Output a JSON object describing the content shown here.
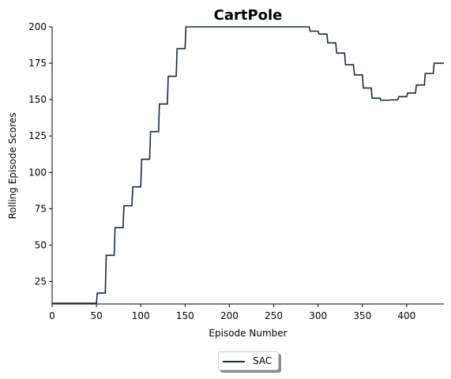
{
  "chart_data": {
    "type": "line",
    "title": "CartPole",
    "xlabel": "Episode Number",
    "ylabel": "Rolling Episode Scores",
    "xlim": [
      0,
      442
    ],
    "ylim": [
      9.5,
      200
    ],
    "x_ticks": [
      "0",
      "50",
      "100",
      "150",
      "200",
      "250",
      "300",
      "350",
      "400"
    ],
    "y_ticks": [
      "25",
      "50",
      "75",
      "100",
      "125",
      "150",
      "175",
      "200"
    ],
    "grid": false,
    "legend_position": "below-center",
    "series": [
      {
        "name": "SAC",
        "color": "#1b2a3c",
        "x": [
          0,
          50,
          51,
          60,
          61,
          70,
          71,
          80,
          81,
          90,
          91,
          100,
          101,
          110,
          111,
          120,
          121,
          130,
          131,
          140,
          141,
          150,
          151,
          290,
          291,
          300,
          301,
          310,
          311,
          320,
          321,
          330,
          331,
          340,
          341,
          350,
          351,
          360,
          361,
          370,
          371,
          380,
          381,
          390,
          391,
          400,
          401,
          410,
          411,
          420,
          421,
          430,
          431,
          442
        ],
        "y": [
          10,
          10,
          17,
          17,
          43,
          43,
          62,
          62,
          77,
          77,
          90,
          90,
          109,
          109,
          128,
          128,
          147,
          147,
          166,
          166,
          185,
          185,
          200,
          200,
          197,
          197,
          195,
          195,
          189,
          189,
          182,
          182,
          174,
          174,
          167,
          167,
          158,
          158,
          151,
          151,
          149.5,
          149.5,
          149.8,
          149.8,
          152,
          152,
          154.5,
          154.5,
          160,
          160,
          168,
          168,
          175,
          175
        ]
      }
    ]
  }
}
